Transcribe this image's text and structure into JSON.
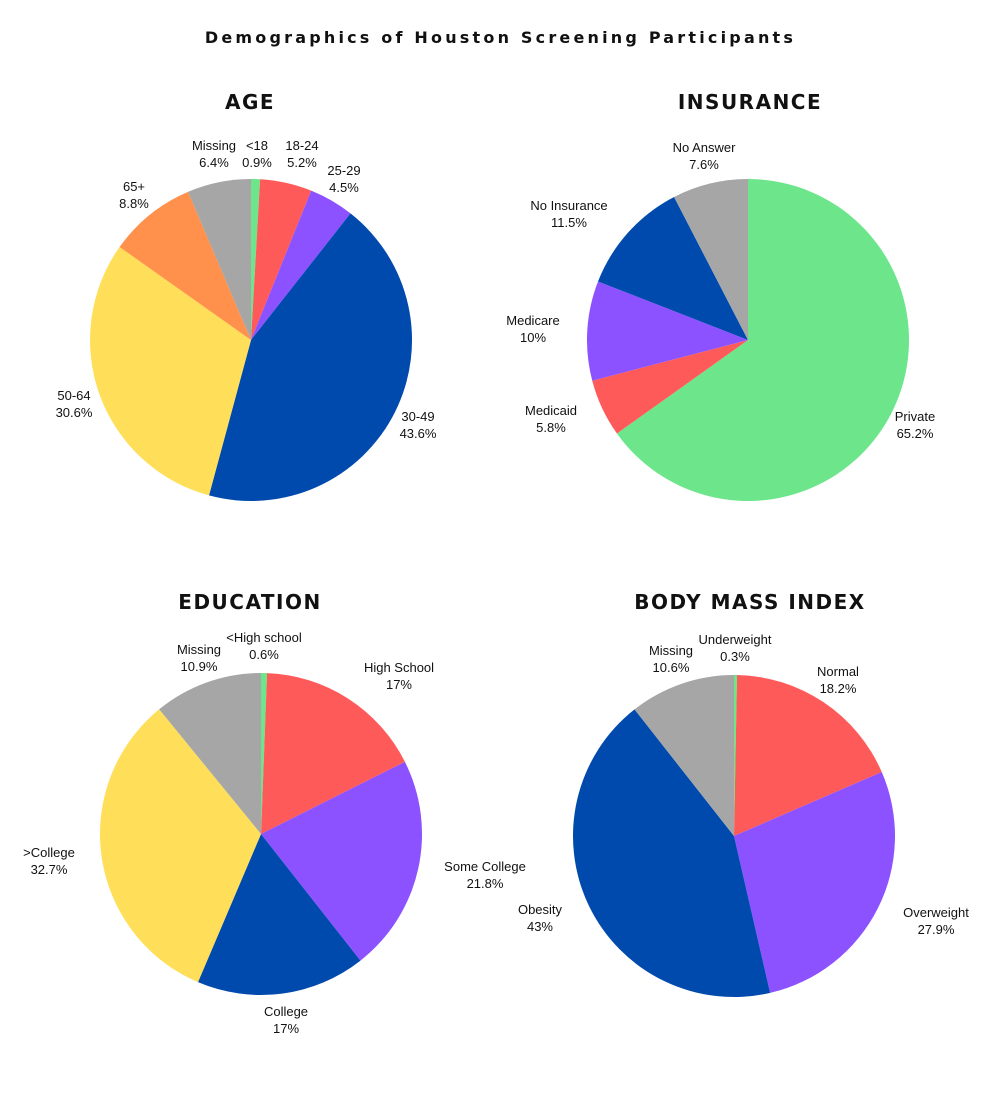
{
  "title": "Demographics of Houston Screening Participants",
  "colors": {
    "green": "#6de68b",
    "red": "#ff5a5a",
    "purple": "#8c52ff",
    "blue": "#004aad",
    "yellow": "#ffde59",
    "orange": "#ff914d",
    "gray": "#a6a6a6"
  },
  "chart_data": [
    {
      "id": "age",
      "type": "pie",
      "title": "AGE",
      "start_angle_deg": 0,
      "direction": "clockwise",
      "slices": [
        {
          "label": "<18",
          "value": 0.9,
          "value_text": "0.9%",
          "color": "#6de68b"
        },
        {
          "label": "18-24",
          "value": 5.2,
          "value_text": "5.2%",
          "color": "#ff5a5a"
        },
        {
          "label": "25-29",
          "value": 4.5,
          "value_text": "4.5%",
          "color": "#8c52ff"
        },
        {
          "label": "30-49",
          "value": 43.6,
          "value_text": "43.6%",
          "color": "#004aad"
        },
        {
          "label": "50-64",
          "value": 30.6,
          "value_text": "30.6%",
          "color": "#ffde59"
        },
        {
          "label": "65+",
          "value": 8.8,
          "value_text": "8.8%",
          "color": "#ff914d"
        },
        {
          "label": "Missing",
          "value": 6.4,
          "value_text": "6.4%",
          "color": "#a6a6a6"
        }
      ]
    },
    {
      "id": "insurance",
      "type": "pie",
      "title": "INSURANCE",
      "start_angle_deg": 0,
      "direction": "clockwise",
      "slices": [
        {
          "label": "Private",
          "value": 65.2,
          "value_text": "65.2%",
          "color": "#6de68b"
        },
        {
          "label": "Medicaid",
          "value": 5.8,
          "value_text": "5.8%",
          "color": "#ff5a5a"
        },
        {
          "label": "Medicare",
          "value": 10,
          "value_text": "10%",
          "color": "#8c52ff"
        },
        {
          "label": "No Insurance",
          "value": 11.5,
          "value_text": "11.5%",
          "color": "#004aad"
        },
        {
          "label": "No Answer",
          "value": 7.6,
          "value_text": "7.6%",
          "color": "#a6a6a6"
        }
      ]
    },
    {
      "id": "education",
      "type": "pie",
      "title": "EDUCATION",
      "start_angle_deg": 0,
      "direction": "clockwise",
      "slices": [
        {
          "label": "<High school",
          "value": 0.6,
          "value_text": "0.6%",
          "color": "#6de68b"
        },
        {
          "label": "High School",
          "value": 17,
          "value_text": "17%",
          "color": "#ff5a5a"
        },
        {
          "label": "Some College",
          "value": 21.8,
          "value_text": "21.8%",
          "color": "#8c52ff"
        },
        {
          "label": "College",
          "value": 17,
          "value_text": "17%",
          "color": "#004aad"
        },
        {
          "label": ">College",
          "value": 32.7,
          "value_text": "32.7%",
          "color": "#ffde59"
        },
        {
          "label": "Missing",
          "value": 10.9,
          "value_text": "10.9%",
          "color": "#a6a6a6"
        }
      ]
    },
    {
      "id": "bmi",
      "type": "pie",
      "title": "BODY MASS INDEX",
      "start_angle_deg": 0,
      "direction": "clockwise",
      "slices": [
        {
          "label": "Underweight",
          "value": 0.3,
          "value_text": "0.3%",
          "color": "#6de68b"
        },
        {
          "label": "Normal",
          "value": 18.2,
          "value_text": "18.2%",
          "color": "#ff5a5a"
        },
        {
          "label": "Overweight",
          "value": 27.9,
          "value_text": "27.9%",
          "color": "#8c52ff"
        },
        {
          "label": "Obesity",
          "value": 43,
          "value_text": "43%",
          "color": "#004aad"
        },
        {
          "label": "Missing",
          "value": 10.6,
          "value_text": "10.6%",
          "color": "#a6a6a6"
        }
      ]
    }
  ]
}
